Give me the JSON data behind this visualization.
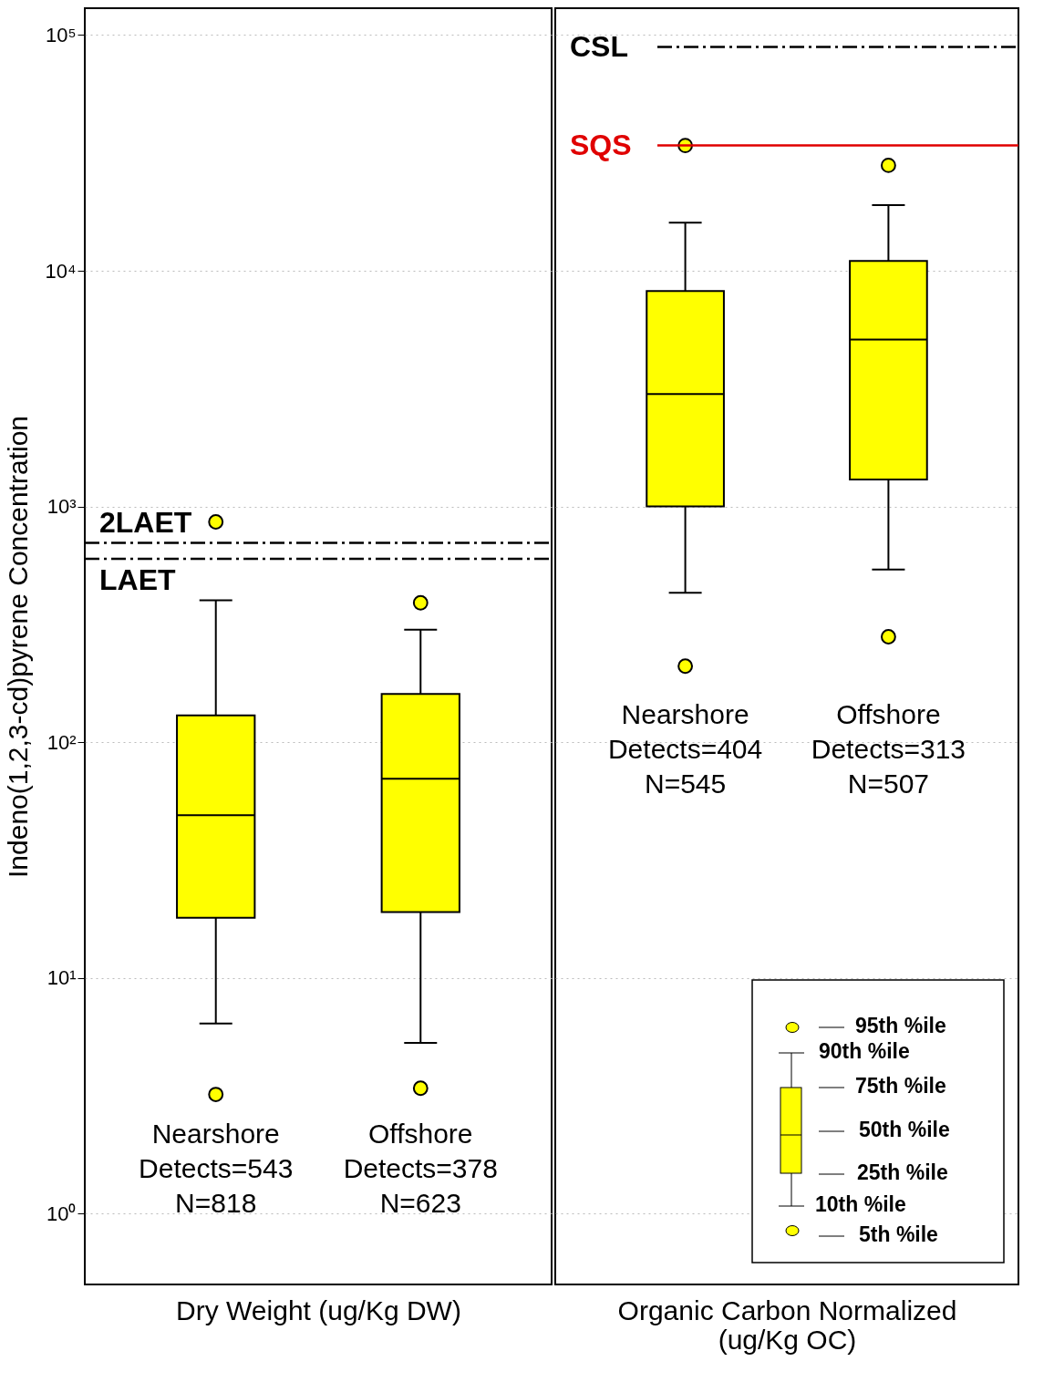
{
  "chart_data": [
    {
      "type": "box",
      "ylabel": "Indeno(1,2,3-cd)pyrene Concentration",
      "xlabel": "Dry Weight (ug/Kg DW)",
      "categories": [
        "Nearshore\nDetects=543\nN=818",
        "Offshore\nDetects=378\nN=623"
      ],
      "color": "#ffff00",
      "boxes": [
        {
          "low": 6.4,
          "q1": 18,
          "median": 49,
          "q3": 130,
          "high": 400,
          "outliers": [
            3.2,
            860
          ]
        },
        {
          "low": 5.3,
          "q1": 19,
          "median": 70,
          "q3": 160,
          "high": 300,
          "outliers": [
            3.4,
            390
          ]
        }
      ],
      "log": true,
      "ylim": [
        0.5,
        130000
      ],
      "yticks": [
        {
          "value": 1,
          "label": "10⁰"
        },
        {
          "value": 10,
          "label": "10¹"
        },
        {
          "value": 100,
          "label": "10²"
        },
        {
          "value": 1000,
          "label": "10³"
        },
        {
          "value": 10000,
          "label": "10⁴"
        },
        {
          "value": 100000,
          "label": "10⁵"
        }
      ],
      "grid": "y",
      "ref_lines": [
        {
          "axis": "y",
          "value": 700,
          "label": "2LAET",
          "color": "#000000",
          "line_style": "dashed"
        },
        {
          "axis": "y",
          "value": 600,
          "label": "LAET",
          "color": "#000000",
          "line_style": "dashed"
        }
      ]
    },
    {
      "type": "box",
      "xlabel": "Organic Carbon Normalized (ug/Kg OC)",
      "categories": [
        "Nearshore\nDetects=404\nN=545",
        "Offshore\nDetects=313\nN=507"
      ],
      "color": "#ffff00",
      "boxes": [
        {
          "low": 430,
          "q1": 1000,
          "median": 3000,
          "q3": 8200,
          "high": 16000,
          "outliers": [
            210,
            34000
          ]
        },
        {
          "low": 540,
          "q1": 1300,
          "median": 5100,
          "q3": 11000,
          "high": 19000,
          "outliers": [
            280,
            28000
          ]
        }
      ],
      "log": true,
      "ylim": [
        0.5,
        130000
      ],
      "yticks": [
        1,
        10,
        100,
        1000,
        10000,
        100000
      ],
      "grid": "y",
      "legend": false,
      "tick_labels": "x",
      "ref_lines": [
        {
          "axis": "y",
          "value": 89000,
          "label": "CSL",
          "color": "#000000",
          "line_style": "dashed"
        },
        {
          "axis": "y",
          "value": 34000,
          "label": "SQS",
          "color": "#e00000",
          "line_style": "solid"
        }
      ],
      "annotations": [
        "95th %ile",
        "90th %ile",
        "75th %ile",
        "50th %ile",
        "25th %ile",
        "10th %ile",
        "5th %ile"
      ]
    }
  ]
}
